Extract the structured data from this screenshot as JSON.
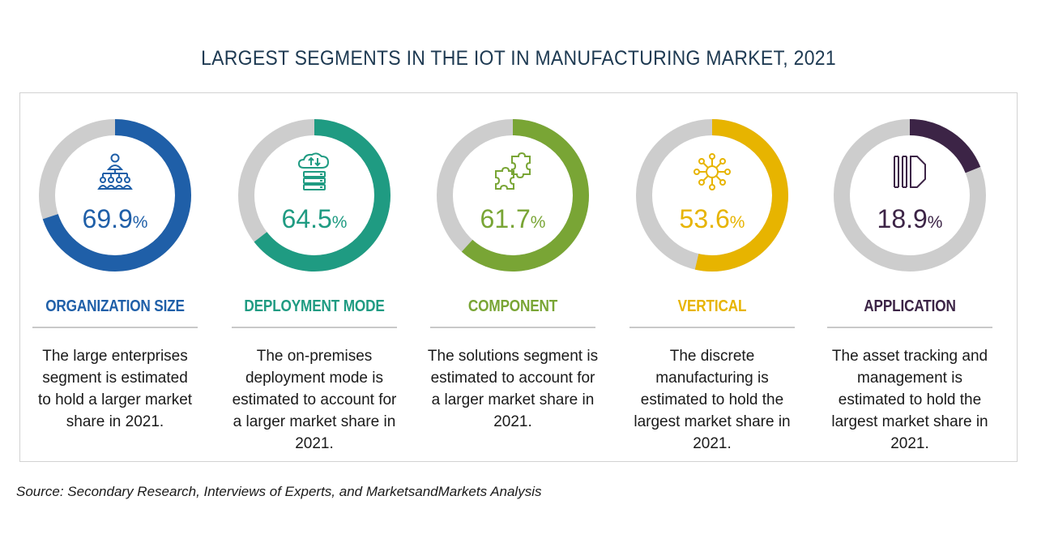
{
  "title": "LARGEST SEGMENTS IN THE IOT IN MANUFACTURING  MARKET, 2021",
  "source": "Source: Secondary Research, Interviews of Experts, and MarketsandMarkets Analysis",
  "track_color": "#cdcdcd",
  "chart_data": {
    "type": "pie",
    "title": "LARGEST SEGMENTS IN THE IOT IN MANUFACTURING  MARKET, 2021",
    "unit": "%",
    "series": [
      {
        "category": "ORGANIZATION SIZE",
        "value": 69.9,
        "value_text": "69.9",
        "color": "#1f5fa8",
        "icon": "organization-hierarchy-icon",
        "description": "The large enterprises segment is estimated to hold a larger market share in 2021."
      },
      {
        "category": "DEPLOYMENT MODE",
        "value": 64.5,
        "value_text": "64.5",
        "color": "#1f9b82",
        "icon": "cloud-server-icon",
        "description": "The on-premises deployment mode is estimated to account for a larger market share in 2021."
      },
      {
        "category": "COMPONENT",
        "value": 61.7,
        "value_text": "61.7",
        "color": "#79a535",
        "icon": "puzzle-pieces-icon",
        "description": "The solutions segment is estimated to account for a larger market share in 2021."
      },
      {
        "category": "VERTICAL",
        "value": 53.6,
        "value_text": "53.6",
        "color": "#e7b400",
        "icon": "network-hub-icon",
        "description": "The discrete manufacturing is estimated to hold the largest market share in 2021."
      },
      {
        "category": "APPLICATION",
        "value": 18.9,
        "value_text": "18.9",
        "color": "#3c2446",
        "icon": "stacked-panels-icon",
        "description": "The asset tracking and management is estimated to hold the largest market share in 2021."
      }
    ]
  }
}
